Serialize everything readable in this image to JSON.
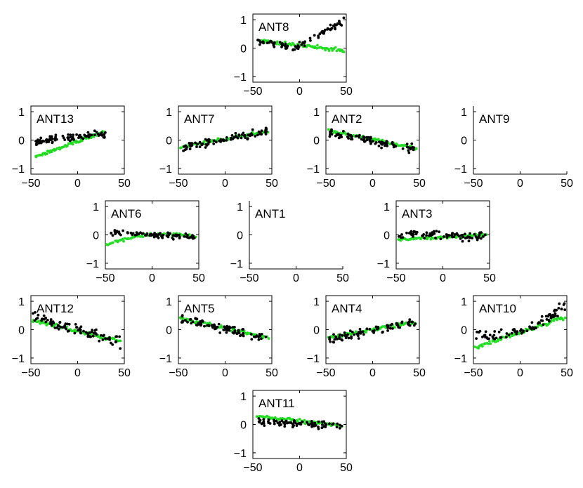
{
  "chart_data": {
    "type": "scatter",
    "layout": "small-multiples grid of 13 antenna panels",
    "xlim": [
      -50,
      50
    ],
    "ylim": [
      -1.2,
      1.2
    ],
    "x_ticks": [
      -50,
      0,
      50
    ],
    "y_ticks": [
      -1,
      0,
      1
    ],
    "series_colors": {
      "observed": "#000000",
      "model": "#22dd22"
    },
    "panels": [
      {
        "id": "ANT8",
        "title": "ANT8",
        "has_data": true,
        "x_range": [
          -45,
          48
        ],
        "obs": {
          "kind": "vshape",
          "xmin": -5,
          "slope_left": -0.006,
          "slope_right": 0.018,
          "base": 0.0,
          "noise": 0.09
        },
        "model": {
          "kind": "linear",
          "slope": -0.004,
          "intercept": 0.1,
          "noise": 0.05
        }
      },
      {
        "id": "ANT13",
        "title": "ANT13",
        "has_data": true,
        "x_range": [
          -45,
          30
        ],
        "obs": {
          "kind": "linear",
          "slope": 0.004,
          "intercept": 0.12,
          "noise": 0.08
        },
        "model": {
          "kind": "linear",
          "slope": 0.012,
          "intercept": -0.05,
          "noise": 0.05
        }
      },
      {
        "id": "ANT7",
        "title": "ANT7",
        "has_data": true,
        "x_range": [
          -48,
          46
        ],
        "obs": {
          "kind": "linear",
          "slope": 0.0065,
          "intercept": 0.02,
          "noise": 0.1
        },
        "model": {
          "kind": "linear",
          "slope": 0.0058,
          "intercept": 0.04,
          "noise": 0.05
        }
      },
      {
        "id": "ANT2",
        "title": "ANT2",
        "has_data": true,
        "x_range": [
          -47,
          47
        ],
        "obs": {
          "kind": "linear",
          "slope": -0.0065,
          "intercept": -0.05,
          "noise": 0.1
        },
        "model": {
          "kind": "linear",
          "slope": -0.0068,
          "intercept": 0.02,
          "noise": 0.05
        }
      },
      {
        "id": "ANT9",
        "title": "ANT9",
        "has_data": false
      },
      {
        "id": "ANT6",
        "title": "ANT6",
        "has_data": true,
        "x_range": [
          -48,
          47
        ],
        "obs": {
          "kind": "linear",
          "slope": -0.002,
          "intercept": 0.0,
          "noise": 0.08
        },
        "model": {
          "kind": "quad",
          "peak_x": 15,
          "peak_y": 0.02,
          "curv": -9e-05,
          "noise": 0.04
        }
      },
      {
        "id": "ANT1",
        "title": "ANT1",
        "has_data": false
      },
      {
        "id": "ANT3",
        "title": "ANT3",
        "has_data": true,
        "x_range": [
          -48,
          47
        ],
        "obs": {
          "kind": "linear",
          "slope": -0.0015,
          "intercept": 0.0,
          "noise": 0.1
        },
        "model": {
          "kind": "linear",
          "slope": 0.002,
          "intercept": -0.08,
          "noise": 0.04
        }
      },
      {
        "id": "ANT12",
        "title": "ANT12",
        "has_data": true,
        "x_range": [
          -48,
          46
        ],
        "obs": {
          "kind": "linear",
          "slope": -0.01,
          "intercept": 0.0,
          "noise": 0.12
        },
        "model": {
          "kind": "linear",
          "slope": -0.0078,
          "intercept": -0.05,
          "noise": 0.05
        }
      },
      {
        "id": "ANT5",
        "title": "ANT5",
        "has_data": true,
        "x_range": [
          -48,
          46
        ],
        "obs": {
          "kind": "linear",
          "slope": -0.0078,
          "intercept": 0.02,
          "noise": 0.1
        },
        "model": {
          "kind": "linear",
          "slope": -0.0072,
          "intercept": 0.05,
          "noise": 0.05
        }
      },
      {
        "id": "ANT4",
        "title": "ANT4",
        "has_data": true,
        "x_range": [
          -47,
          46
        ],
        "obs": {
          "kind": "linear",
          "slope": 0.0068,
          "intercept": -0.02,
          "noise": 0.1
        },
        "model": {
          "kind": "linear",
          "slope": 0.006,
          "intercept": 0.0,
          "noise": 0.05
        }
      },
      {
        "id": "ANT10",
        "title": "ANT10",
        "has_data": true,
        "x_range": [
          -48,
          48
        ],
        "obs": {
          "kind": "quad2",
          "a": 0.00018,
          "b": 0.011,
          "c": -0.05,
          "noise": 0.12
        },
        "model": {
          "kind": "linear",
          "slope": 0.011,
          "intercept": -0.1,
          "noise": 0.06
        }
      },
      {
        "id": "ANT11",
        "title": "ANT11",
        "has_data": true,
        "x_range": [
          -45,
          45
        ],
        "obs": {
          "kind": "linear",
          "slope": -0.0018,
          "intercept": 0.03,
          "noise": 0.09
        },
        "model": {
          "kind": "linear",
          "slope": -0.0035,
          "intercept": 0.12,
          "noise": 0.05
        }
      }
    ]
  }
}
